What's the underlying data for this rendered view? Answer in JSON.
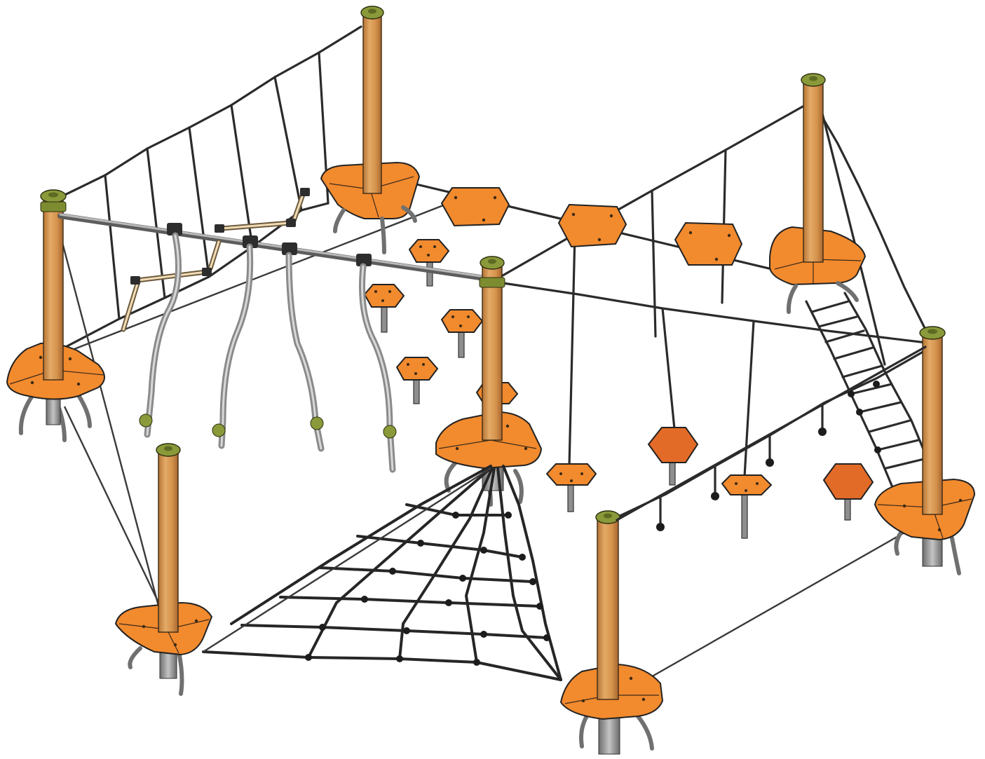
{
  "scene": {
    "subject": "",
    "colors": {
      "deck_orange": "#f28a2e",
      "deck_orange_dark": "#e36b28",
      "pole_wood": "#d89a55",
      "pole_wood_shade": "#b67436",
      "cap_olive": "#8a9a3a",
      "cap_olive_dark": "#5d6a22",
      "rope": "#2b2b2b",
      "steel": "#8e8e8e",
      "background": "#ffffff"
    }
  }
}
